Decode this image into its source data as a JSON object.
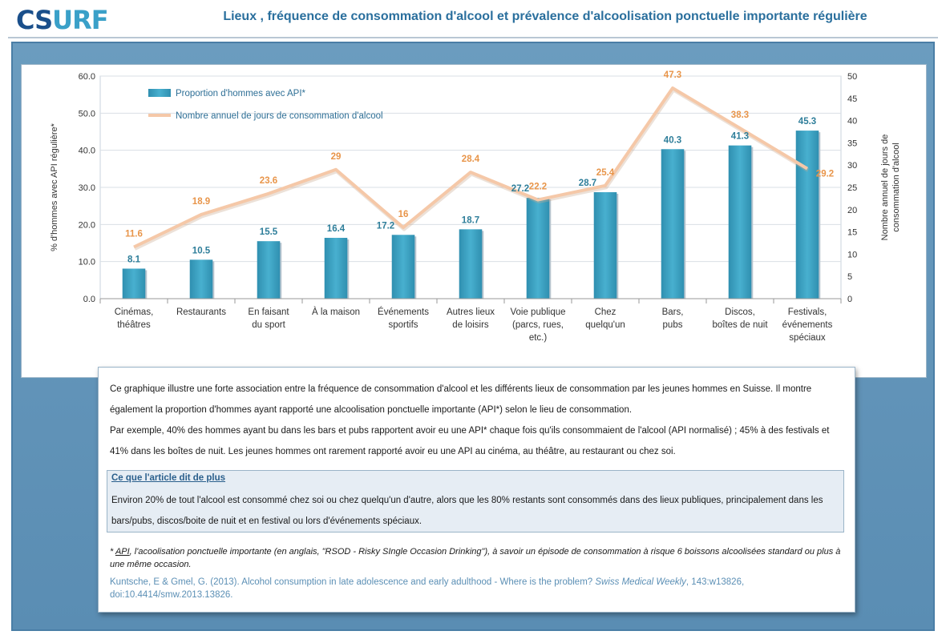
{
  "header": {
    "logo_part1": "CS",
    "logo_part2": "URF",
    "title": "Lieux , fréquence de consommation d'alcool et prévalence d'alcoolisation ponctuelle importante régulière"
  },
  "chart_data": {
    "type": "bar",
    "categories": [
      [
        "Cinémas,",
        "théâtres"
      ],
      [
        "Restaurants"
      ],
      [
        "En faisant",
        "du sport"
      ],
      [
        "À la maison"
      ],
      [
        "Événements",
        "sportifs"
      ],
      [
        "Autres lieux",
        "de loisirs"
      ],
      [
        "Voie publique",
        "(parcs, rues,",
        "etc.)"
      ],
      [
        "Chez",
        "quelqu'un"
      ],
      [
        "Bars,",
        "pubs"
      ],
      [
        "Discos,",
        "boîtes de nuit"
      ],
      [
        "Festivals,",
        "événements",
        "spéciaux"
      ]
    ],
    "series": [
      {
        "name": "Proportion d'hommes avec API*",
        "type": "bar",
        "axis": "left",
        "color": "#3a9fbf",
        "values": [
          8.1,
          10.5,
          15.5,
          16.4,
          17.2,
          18.7,
          27.2,
          28.7,
          40.3,
          41.3,
          45.3
        ],
        "labels": [
          "8.1",
          "10.5",
          "15.5",
          "16.4",
          "17.2",
          "18.7",
          "27.2",
          "28.7",
          "40.3",
          "41.3",
          "45.3"
        ]
      },
      {
        "name": "Nombre annuel de jours de consommation  d'alcool",
        "type": "line",
        "axis": "right",
        "color": "#f5c8a8",
        "label_color": "#e8954a",
        "values": [
          11.6,
          18.9,
          23.6,
          29,
          16,
          28.4,
          22.2,
          25.4,
          47.3,
          38.3,
          29.2
        ],
        "labels": [
          "11.6",
          "18.9",
          "23.6",
          "29",
          "16",
          "28.4",
          "22.2",
          "25.4",
          "47.3",
          "38.3",
          "29.2"
        ]
      }
    ],
    "ylabel": "% d'hommes  avec API régulière*",
    "y2label_lines": [
      "Nombre  annuel  de  jours  de",
      "consommation  d'alcool"
    ],
    "ylim": [
      0,
      60
    ],
    "y2lim": [
      0,
      50
    ],
    "yticks": [
      "0.0",
      "10.0",
      "20.0",
      "30.0",
      "40.0",
      "50.0",
      "60.0"
    ],
    "y2ticks": [
      "0",
      "5",
      "10",
      "15",
      "20",
      "25",
      "30",
      "35",
      "40",
      "45",
      "50"
    ],
    "legend_position": "top-left",
    "grid": true
  },
  "text": {
    "para1": "Ce graphique illustre une forte association  entre la fréquence de consommation  d'alcool et les différents lieux de consommation  par les jeunes hommes en Suisse. Il montre également la proportion d'hommes ayant rapporté une alcoolisation ponctuelle importante (API*) selon le lieu de consommation.",
    "para2": "Par exemple, 40% des hommes ayant bu dans les bars et pubs rapportent avoir eu une API* chaque fois qu'ils consommaient de l'alcool (API normalisé) ; 45% à des festivals et 41% dans les boîtes de nuit. Les jeunes hommes ont rarement rapporté avoir eu une API au cinéma, au théâtre, au restaurant ou chez soi.",
    "more_title": "Ce que l'article  dit de plus",
    "more_text": "Environ 20% de tout l'alcool est consommé chez soi ou chez quelqu'un d'autre, alors que les 80% restants sont consommés dans des lieux publiques, principalement dans les bars/pubs, discos/boite de nuit et en festival ou lors d'événements spéciaux.",
    "footnote_star": "* ",
    "footnote_api": "API",
    "footnote_rest": ", l'acoolisation ponctuelle  importante  (en anglais, \"RSOD - Risky SIngle Occasion Drinking\"),  à savoir un épisode de consommation  à risque 6 boissons alcoolisées standard ou plus à une même  occasion.",
    "citation_main": "Kuntsche, E & Gmel, G. (2013). Alcohol consumption in late adolescence and early adulthood - Where is the problem? ",
    "citation_journal": "Swiss Medical Weekly",
    "citation_rest": ", 143:w13826, doi:10.4414/smw.2013.13826."
  }
}
